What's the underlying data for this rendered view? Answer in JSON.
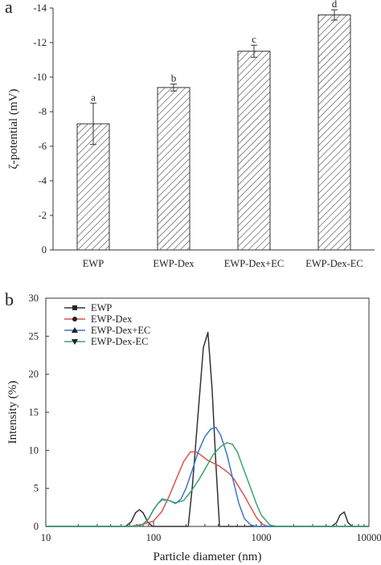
{
  "chart_data": [
    {
      "panel_label": "a",
      "type": "bar",
      "categories": [
        "EWP",
        "EWP-Dex",
        "EWP-Dex+EC",
        "EWP-Dex-EC"
      ],
      "values": [
        -7.3,
        -9.4,
        -11.5,
        -13.6
      ],
      "errors": [
        1.2,
        0.2,
        0.35,
        0.3
      ],
      "significance": [
        "a",
        "b",
        "c",
        "d"
      ],
      "ylabel": "ζ-potential (mV)",
      "xlabel": "",
      "ylim": [
        0,
        -14
      ],
      "yticks": [
        0,
        -2,
        -4,
        -6,
        -8,
        -10,
        -12,
        -14
      ],
      "ytick_labels": [
        "0",
        "-2",
        "-4",
        "-6",
        "-8",
        "-10",
        "-12",
        "-14"
      ],
      "bar_fill": "hatched",
      "colors": {
        "stroke": "#333333"
      }
    },
    {
      "panel_label": "b",
      "type": "line",
      "xlabel": "Particle diameter (nm)",
      "ylabel": "Intensity (%)",
      "xscale": "log",
      "xlim": [
        10,
        10000
      ],
      "ylim": [
        0,
        30
      ],
      "xticks": [
        10,
        100,
        1000,
        10000
      ],
      "xtick_labels": [
        "10",
        "100",
        "1000",
        "10000"
      ],
      "yticks": [
        0,
        5,
        10,
        15,
        20,
        25,
        30
      ],
      "ytick_labels": [
        "0",
        "5",
        "10",
        "15",
        "20",
        "25",
        "30"
      ],
      "legend_position": "top-left",
      "series": [
        {
          "name": "EWP",
          "color": "#333333",
          "marker": "square",
          "x": [
            10,
            55,
            62,
            68,
            74,
            80,
            88,
            98,
            120,
            150,
            190,
            210,
            230,
            260,
            290,
            320,
            350,
            380,
            410,
            450,
            500,
            800,
            3000,
            4500,
            5000,
            5400,
            5900,
            6400,
            7000,
            10000
          ],
          "y": [
            0,
            0,
            0.6,
            1.8,
            2.2,
            1.8,
            0.6,
            0,
            0,
            0,
            0,
            0,
            5.5,
            15,
            23.5,
            25.5,
            18,
            8,
            0,
            0,
            0,
            0,
            0,
            0,
            0.5,
            1.5,
            1.9,
            0.5,
            0,
            0
          ]
        },
        {
          "name": "EWP-Dex",
          "color": "#e05050",
          "marker": "circle",
          "x": [
            10,
            60,
            80,
            100,
            120,
            140,
            160,
            190,
            220,
            250,
            280,
            310,
            350,
            400,
            450,
            500,
            560,
            620,
            700,
            800,
            900,
            1000,
            1100,
            1200,
            1400,
            10000
          ],
          "y": [
            0,
            0,
            0.3,
            0.7,
            2,
            4,
            6,
            8.5,
            9.8,
            9.8,
            9.3,
            8.8,
            8.4,
            8,
            7.5,
            7,
            6.2,
            5.2,
            4,
            2.5,
            1.2,
            0.4,
            0.1,
            0,
            0,
            0
          ]
        },
        {
          "name": "EWP-Dex+EC",
          "color": "#3a78c8",
          "marker": "triangle-up",
          "x": [
            10,
            70,
            80,
            90,
            100,
            110,
            120,
            140,
            160,
            180,
            200,
            230,
            260,
            300,
            340,
            380,
            420,
            480,
            550,
            620,
            700,
            800,
            900,
            10000
          ],
          "y": [
            0,
            0,
            0.3,
            1,
            2.2,
            3,
            3.6,
            3.4,
            3,
            3.6,
            5,
            7.5,
            9.8,
            11.8,
            12.8,
            13,
            12,
            9.5,
            6,
            3,
            1,
            0.2,
            0,
            0
          ]
        },
        {
          "name": "EWP-Dex-EC",
          "color": "#3aa46a",
          "marker": "triangle-down",
          "x": [
            10,
            70,
            80,
            90,
            100,
            110,
            120,
            140,
            160,
            190,
            220,
            260,
            300,
            360,
            420,
            480,
            540,
            600,
            700,
            800,
            900,
            1000,
            1200,
            1400,
            10000
          ],
          "y": [
            0,
            0,
            0.3,
            1,
            2.2,
            3,
            3.5,
            3.4,
            3.1,
            3.4,
            4.5,
            6,
            7.5,
            9.5,
            10.5,
            11,
            10.8,
            9.8,
            7.2,
            5,
            3,
            1.5,
            0.2,
            0,
            0
          ]
        }
      ]
    }
  ]
}
